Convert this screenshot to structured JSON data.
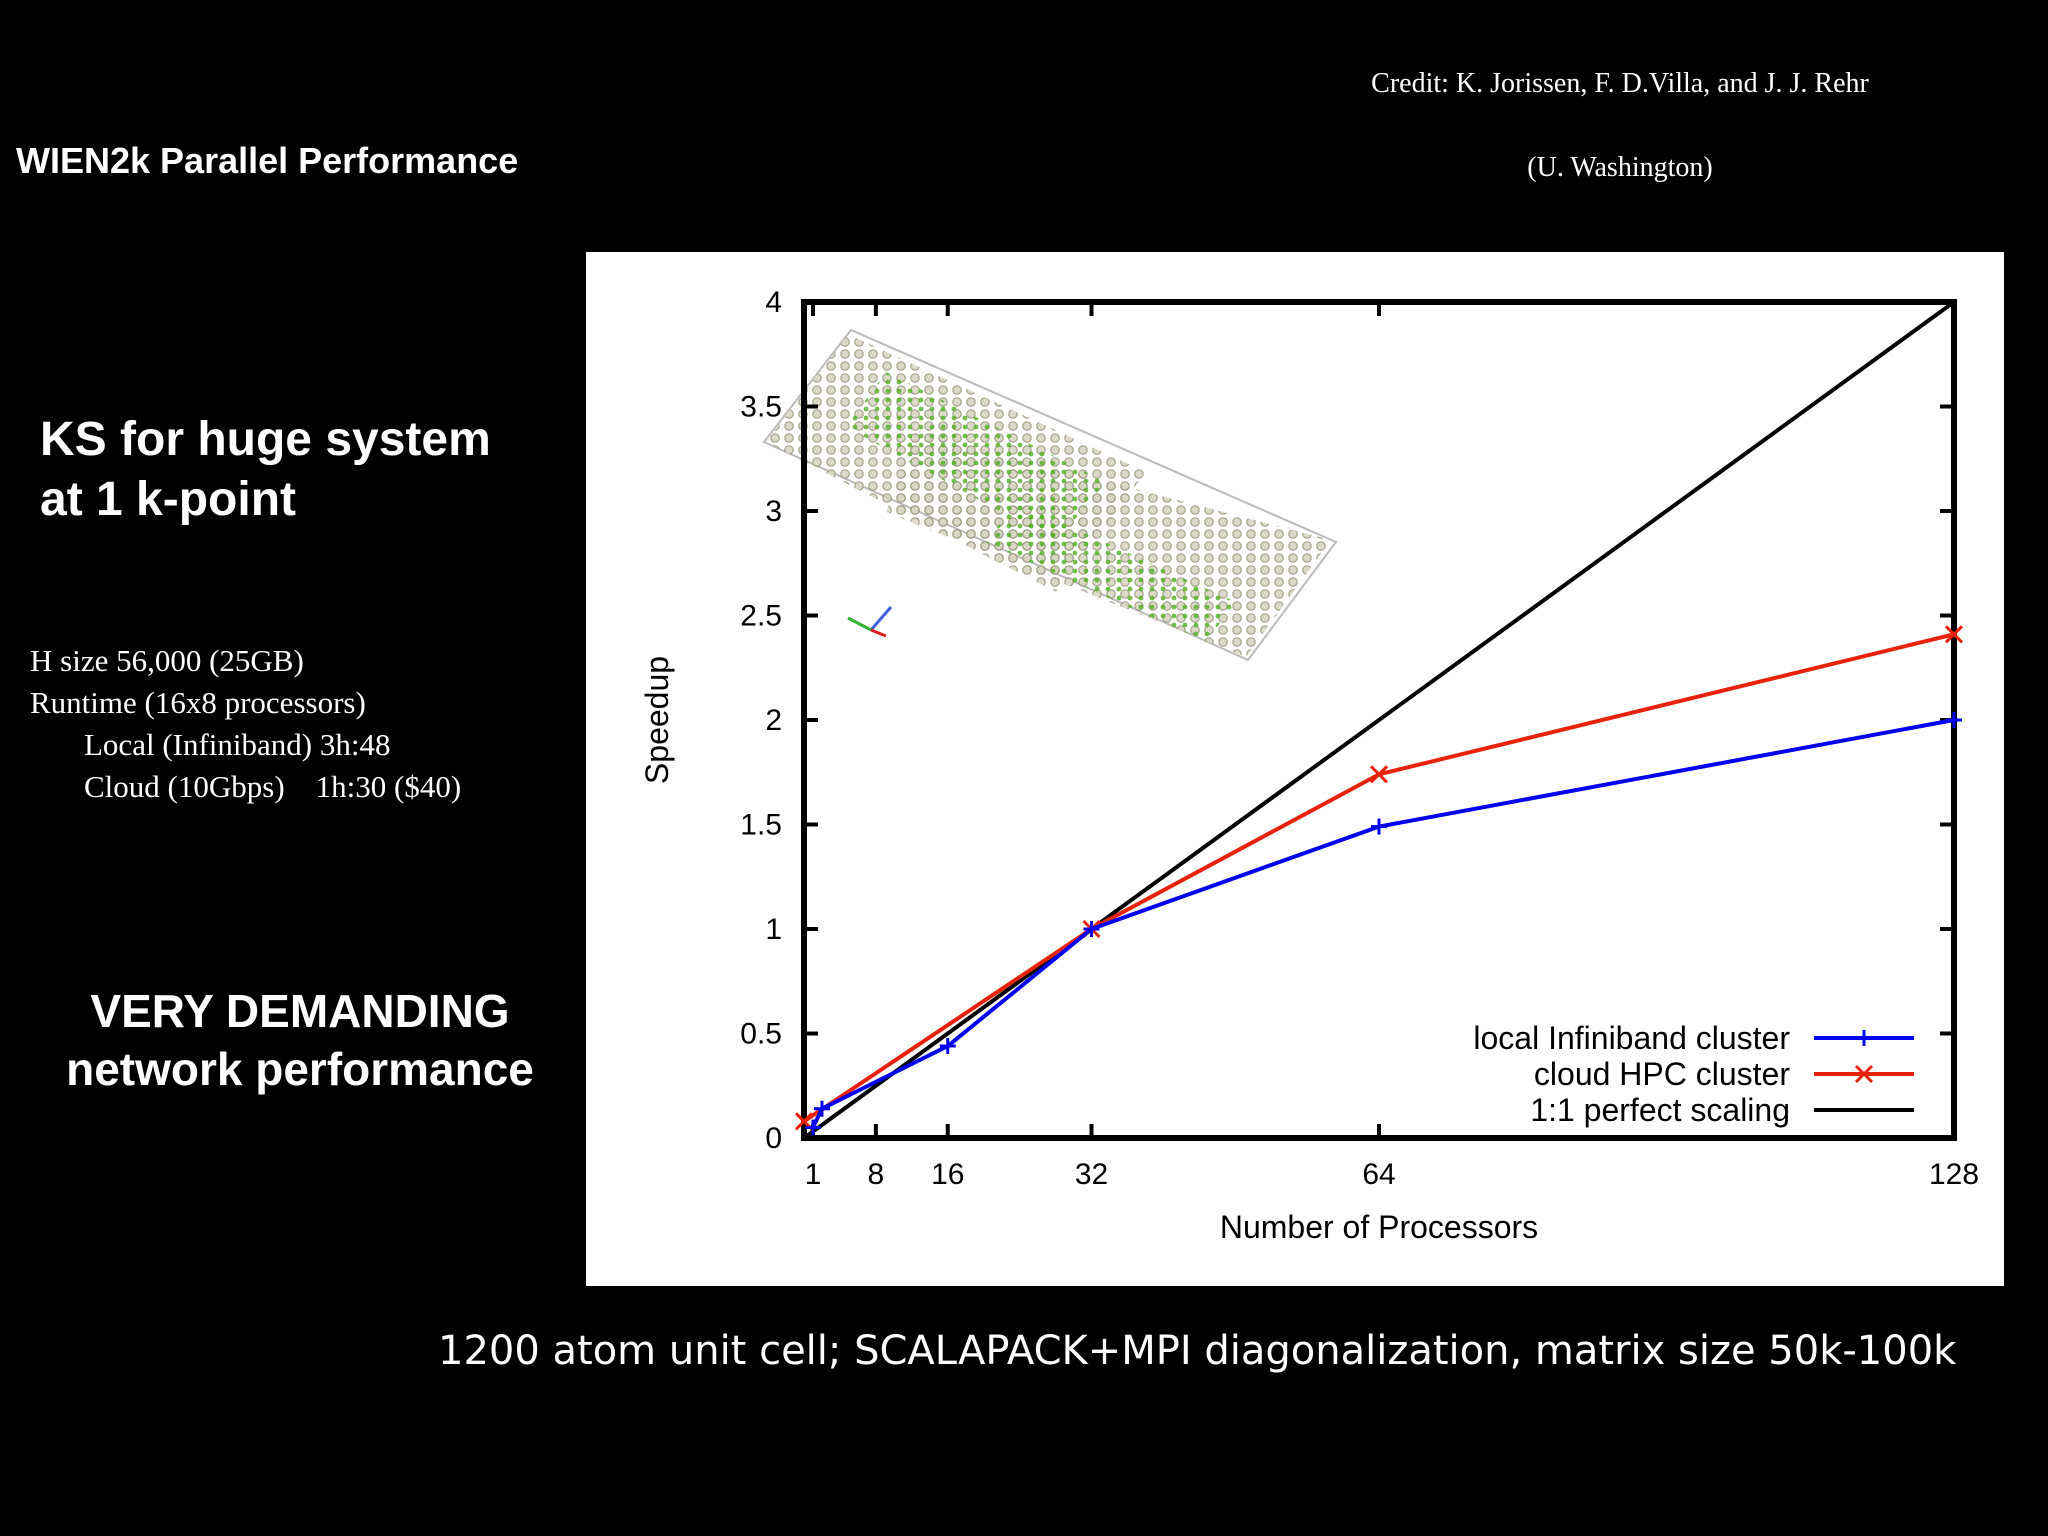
{
  "credit": {
    "line1": "Credit: K. Jorissen, F. D.Villa,  and J. J. Rehr",
    "line2": "(U.  Washington)"
  },
  "slide_title": "WIEN2k Parallel Performance",
  "heading": {
    "line1": "KS for huge system",
    "line2": "at 1 k-point"
  },
  "specs": {
    "h_size": "H size 56,000  (25GB)",
    "runtime": "Runtime (16x8 processors)",
    "local": "Local (Infiniband) 3h:48",
    "cloud": "Cloud (10Gbps)    1h:30 ($40)"
  },
  "demanding": {
    "line1": "VERY DEMANDING",
    "line2": "network performance"
  },
  "footer": "1200 atom unit cell; SCALAPACK+MPI diagonalization, matrix size 50k-100k",
  "chart_data": {
    "type": "line",
    "xlabel": "Number of Processors",
    "ylabel": "Speedup",
    "xlim": [
      0,
      128
    ],
    "ylim": [
      0,
      4
    ],
    "x_ticks": [
      1,
      8,
      16,
      32,
      64,
      128
    ],
    "x_tick_labels": [
      "1",
      "8",
      "16",
      "32",
      "64",
      "128"
    ],
    "y_ticks": [
      0,
      0.5,
      1,
      1.5,
      2,
      2.5,
      3,
      3.5,
      4
    ],
    "y_tick_labels": [
      "0",
      "0.5",
      "1",
      "1.5",
      "2",
      "2.5",
      "3",
      "3.5",
      "4"
    ],
    "grid": false,
    "legend_position": "bottom-right",
    "series": [
      {
        "name": "local Infiniband cluster",
        "color": "#0000ee",
        "marker": "plus",
        "x": [
          1,
          2,
          16,
          32,
          64,
          128
        ],
        "y": [
          0.05,
          0.14,
          0.44,
          1.0,
          1.49,
          2.0
        ]
      },
      {
        "name": "cloud HPC cluster",
        "color": "#e8220a",
        "marker": "cross",
        "x": [
          0,
          32,
          64,
          128
        ],
        "y": [
          0.08,
          1.0,
          1.74,
          2.41
        ]
      },
      {
        "name": "1:1 perfect scaling",
        "color": "#000000",
        "marker": "none",
        "x": [
          0,
          128
        ],
        "y": [
          0,
          4
        ]
      }
    ]
  }
}
